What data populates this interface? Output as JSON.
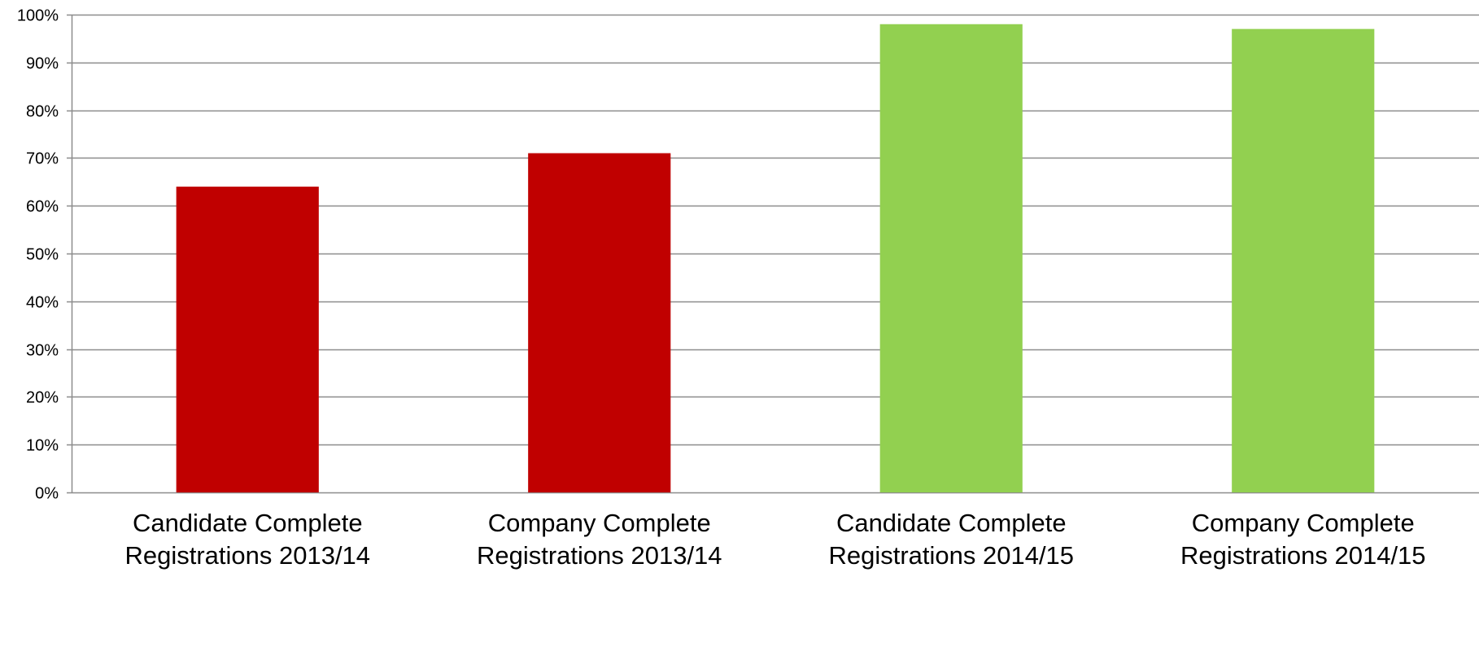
{
  "chart_data": {
    "type": "bar",
    "title": "",
    "xlabel": "",
    "ylabel": "",
    "categories": [
      [
        "Candidate Complete",
        "Registrations 2013/14"
      ],
      [
        "Company Complete",
        "Registrations 2013/14"
      ],
      [
        "Candidate Complete",
        "Registrations 2014/15"
      ],
      [
        "Company Complete",
        "Registrations 2014/15"
      ]
    ],
    "values": [
      64,
      71,
      98,
      97
    ],
    "bar_colors": [
      "#c00000",
      "#c00000",
      "#92d050",
      "#92d050"
    ],
    "ylim": [
      0,
      100
    ],
    "y_ticks": [
      0,
      10,
      20,
      30,
      40,
      50,
      60,
      70,
      80,
      90,
      100
    ],
    "y_tick_suffix": "%",
    "grid": true,
    "legend": "none"
  }
}
